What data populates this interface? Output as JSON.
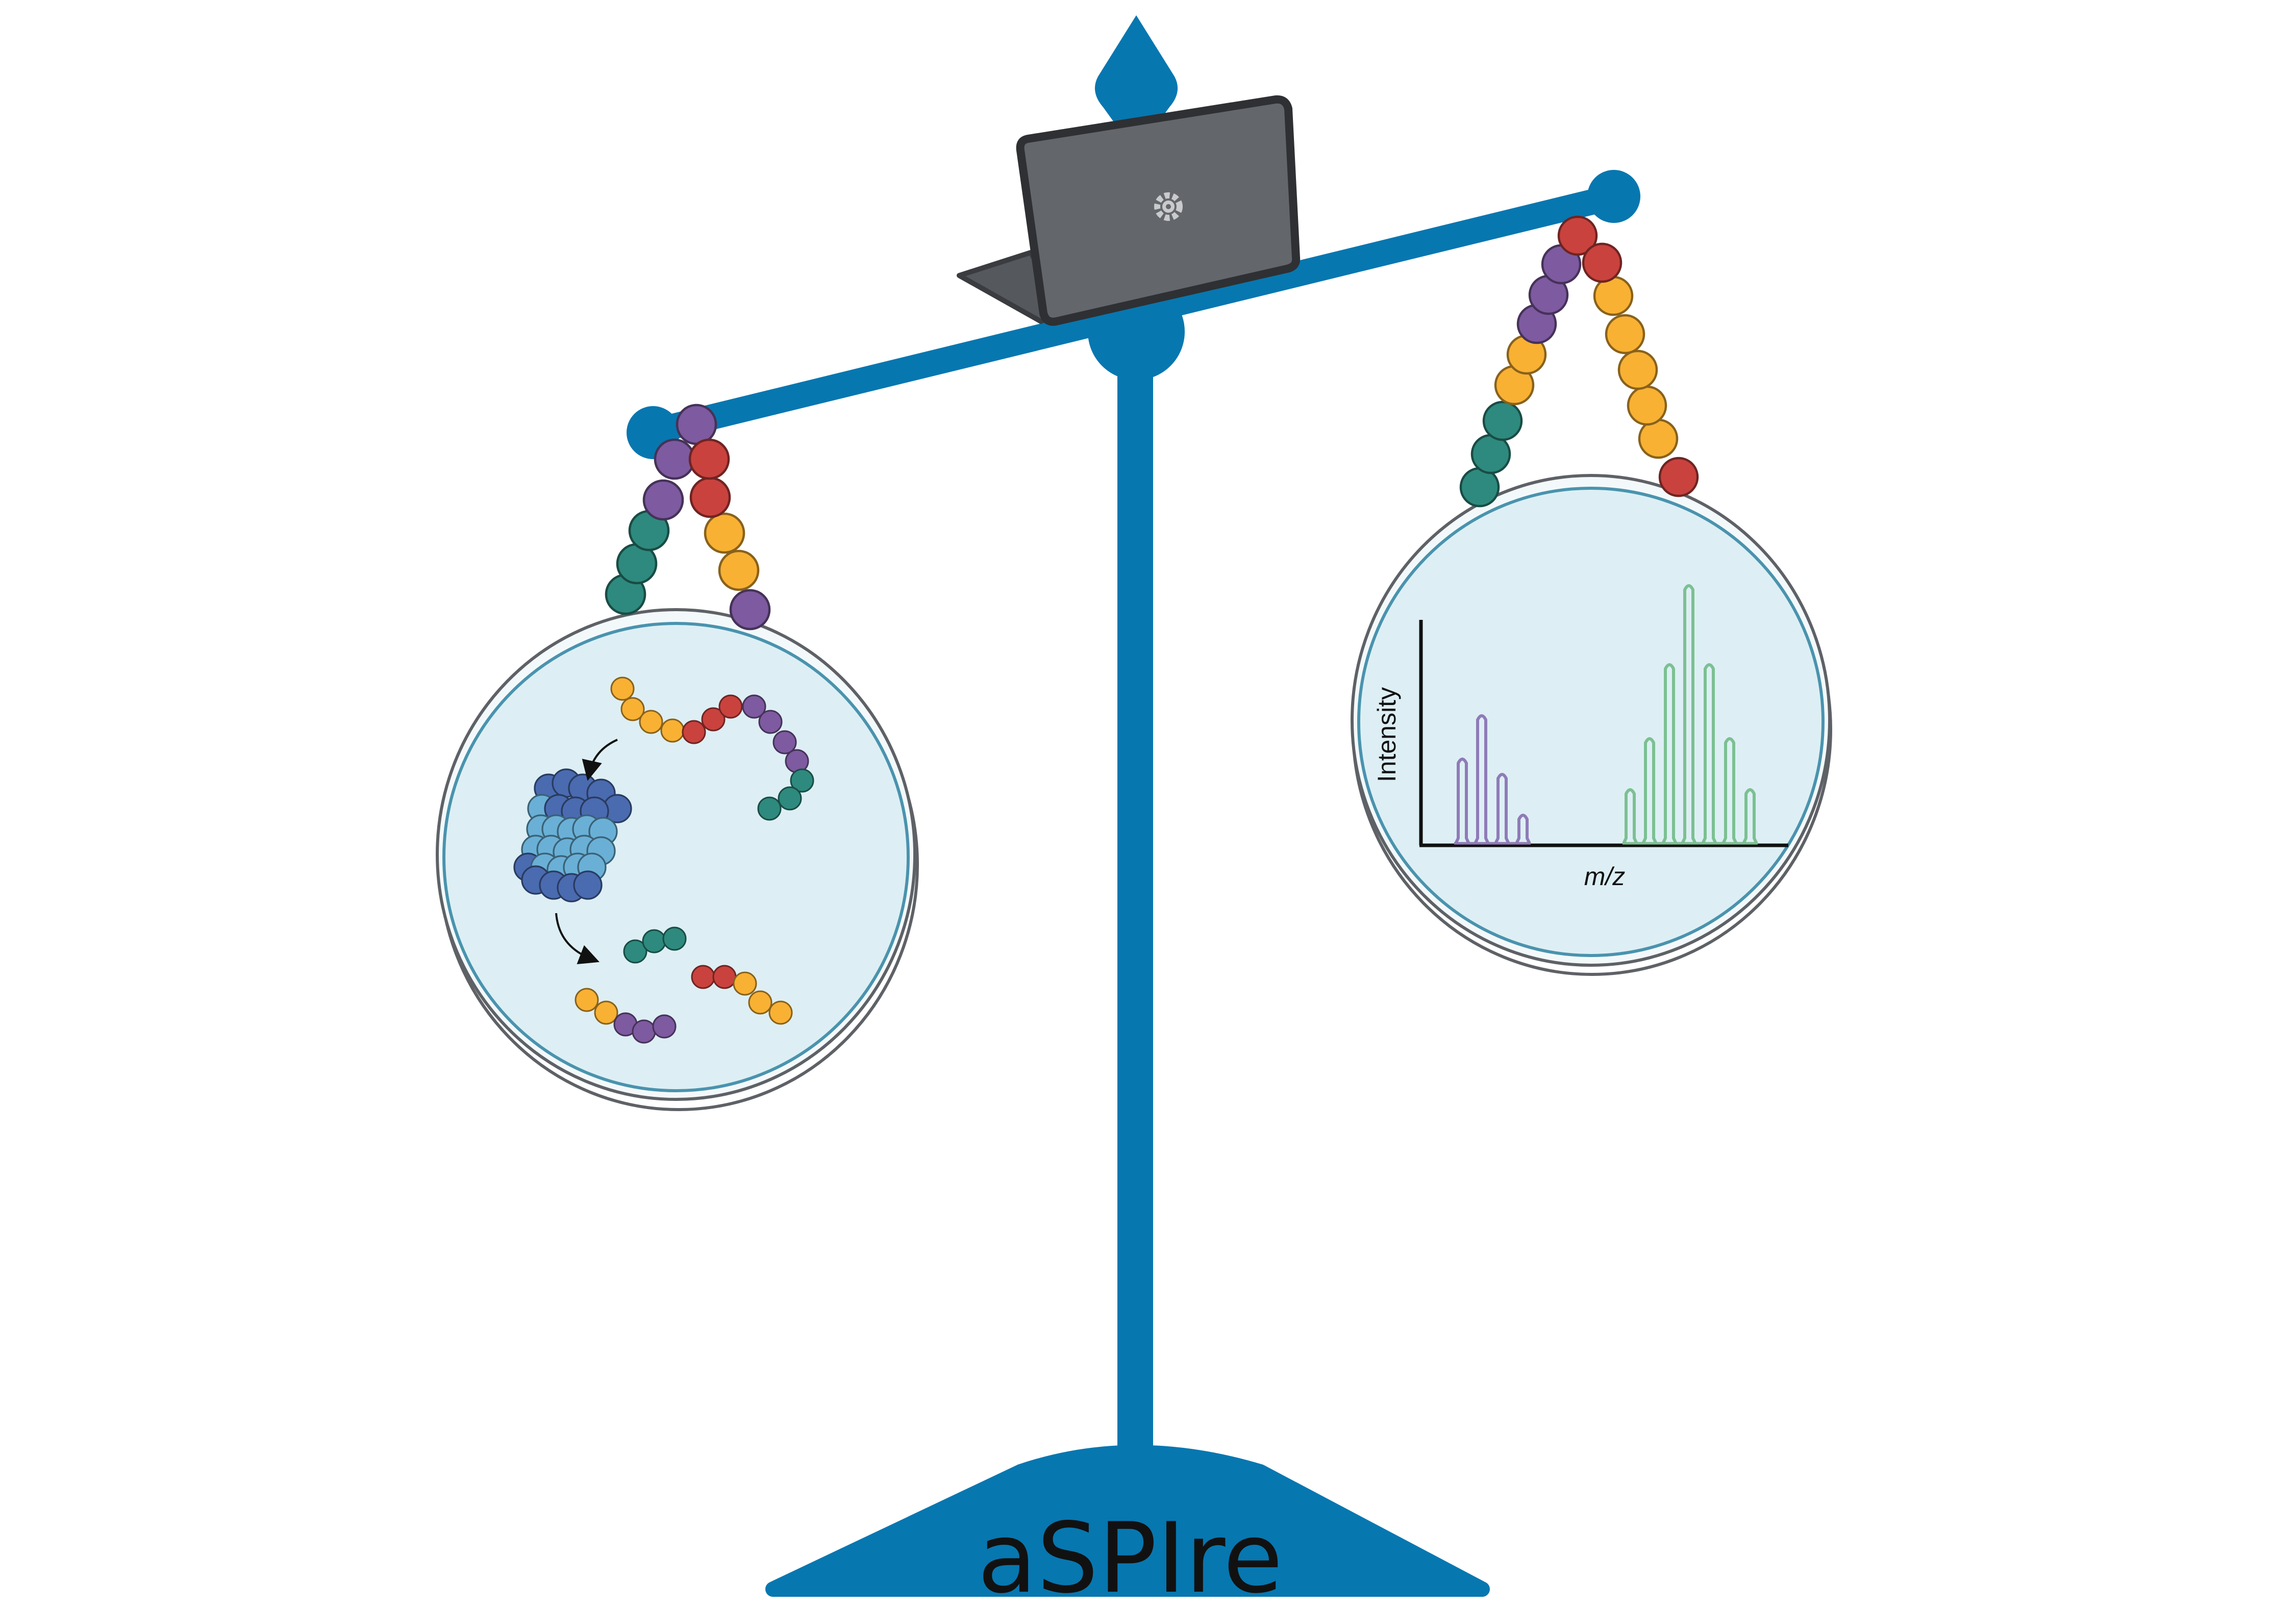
{
  "brand": {
    "name": "aSPIre"
  },
  "spectrum": {
    "y_label": "Intensity",
    "x_label": "m/z"
  },
  "colors": {
    "scale_blue": "#0777B0",
    "bead_yellow": "#F8B133",
    "bead_red": "#C9423E",
    "bead_purple": "#7E5AA0",
    "bead_teal": "#2E8A7E",
    "protein_dark": "#4A6BB0",
    "protein_light": "#6AB0D6",
    "dish_fill": "#DDEFF4",
    "dish_rim": "#4A93AE",
    "peak_purple": "#8F7BB8",
    "peak_green": "#7CC092",
    "laptop_body": "#3A3C40",
    "laptop_screen": "#63666B"
  },
  "icons": {
    "laptop_logo": "gear-icon"
  }
}
